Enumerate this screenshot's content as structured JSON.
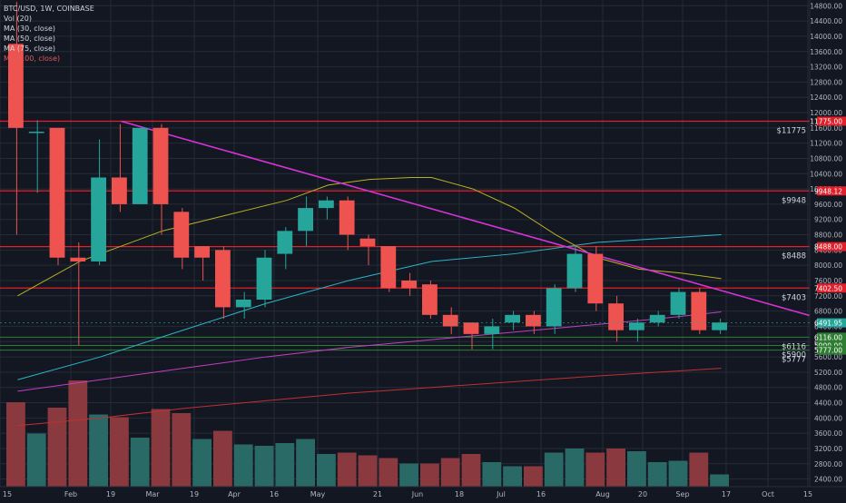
{
  "header": {
    "symbol_line": "BTC/USD, 1W, COINBASE",
    "indicators": [
      "Vol (20)",
      "MA (30, close)",
      "MA (50, close)",
      "MA (75, close)",
      "MA (100, close)"
    ]
  },
  "colors": {
    "background": "#131722",
    "grid": "#262b3a",
    "up": "#26a69a",
    "down": "#ef5350",
    "vol_up": "#2a6a66",
    "vol_down": "#8a3a3f",
    "resistance": "#e0202a",
    "support": "#2e7d32",
    "trendline": "#d633d6",
    "ma30": "#b8b024",
    "ma50": "#2bb6c8",
    "ma75": "#c040c0",
    "ma100": "#c03030"
  },
  "chart_data": {
    "type": "candlestick",
    "title": "BTC/USD, 1W, COINBASE",
    "y_axis_ticks": [
      2400,
      2800,
      3200,
      3600,
      4000,
      4400,
      4800,
      5200,
      5600,
      6000,
      6400,
      6800,
      7200,
      7600,
      8000,
      8400,
      8800,
      9200,
      9600,
      10000,
      10400,
      10800,
      11200,
      11600,
      12000,
      12400,
      12800,
      13200,
      13600,
      14000,
      14400,
      14800
    ],
    "ylim": [
      2200,
      14950
    ],
    "x_axis_labels": [
      "15",
      "Feb",
      "19",
      "Mar",
      "19",
      "Apr",
      "16",
      "May",
      "21",
      "Jun",
      "18",
      "Jul",
      "16",
      "Aug",
      "20",
      "Sep",
      "17",
      "Oct",
      "15"
    ],
    "candles": [
      {
        "o": 13800,
        "h": 14900,
        "l": 8800,
        "c": 11600
      },
      {
        "o": 11500,
        "h": 11800,
        "l": 9900,
        "c": 11500
      },
      {
        "o": 11600,
        "h": 11600,
        "l": 8000,
        "c": 8200
      },
      {
        "o": 8200,
        "h": 8600,
        "l": 5900,
        "c": 8100
      },
      {
        "o": 8100,
        "h": 11300,
        "l": 8000,
        "c": 10300
      },
      {
        "o": 10300,
        "h": 11700,
        "l": 9400,
        "c": 9600
      },
      {
        "o": 9600,
        "h": 11600,
        "l": 9600,
        "c": 11600
      },
      {
        "o": 11600,
        "h": 11700,
        "l": 8800,
        "c": 9600
      },
      {
        "o": 9400,
        "h": 9500,
        "l": 7900,
        "c": 8200
      },
      {
        "o": 8500,
        "h": 8500,
        "l": 7600,
        "c": 8200
      },
      {
        "o": 8400,
        "h": 8500,
        "l": 6600,
        "c": 6900
      },
      {
        "o": 6900,
        "h": 7300,
        "l": 6600,
        "c": 7100
      },
      {
        "o": 7100,
        "h": 8400,
        "l": 6900,
        "c": 8200
      },
      {
        "o": 8300,
        "h": 9000,
        "l": 7900,
        "c": 8900
      },
      {
        "o": 8900,
        "h": 9800,
        "l": 8500,
        "c": 9500
      },
      {
        "o": 9500,
        "h": 9800,
        "l": 9200,
        "c": 9700
      },
      {
        "o": 9700,
        "h": 9800,
        "l": 8400,
        "c": 8800
      },
      {
        "o": 8700,
        "h": 8800,
        "l": 8000,
        "c": 8500
      },
      {
        "o": 8500,
        "h": 8500,
        "l": 7300,
        "c": 7400
      },
      {
        "o": 7600,
        "h": 7800,
        "l": 7200,
        "c": 7400
      },
      {
        "o": 7500,
        "h": 7600,
        "l": 6600,
        "c": 6700
      },
      {
        "o": 6700,
        "h": 6900,
        "l": 6200,
        "c": 6400
      },
      {
        "o": 6500,
        "h": 6500,
        "l": 5800,
        "c": 6200
      },
      {
        "o": 6200,
        "h": 6600,
        "l": 5800,
        "c": 6400
      },
      {
        "o": 6500,
        "h": 6800,
        "l": 6300,
        "c": 6700
      },
      {
        "o": 6700,
        "h": 6800,
        "l": 6200,
        "c": 6400
      },
      {
        "o": 6400,
        "h": 7500,
        "l": 6200,
        "c": 7400
      },
      {
        "o": 7400,
        "h": 8500,
        "l": 7300,
        "c": 8300
      },
      {
        "o": 8300,
        "h": 8500,
        "l": 6800,
        "c": 7000
      },
      {
        "o": 7000,
        "h": 7200,
        "l": 6000,
        "c": 6300
      },
      {
        "o": 6300,
        "h": 6600,
        "l": 6000,
        "c": 6500
      },
      {
        "o": 6500,
        "h": 6800,
        "l": 6400,
        "c": 6700
      },
      {
        "o": 6700,
        "h": 7400,
        "l": 6600,
        "c": 7300
      },
      {
        "o": 7300,
        "h": 7400,
        "l": 6200,
        "c": 6300
      },
      {
        "o": 6300,
        "h": 6600,
        "l": 6200,
        "c": 6500
      }
    ],
    "volume": [
      {
        "v": 0.62,
        "up": false
      },
      {
        "v": 0.39,
        "up": true
      },
      {
        "v": 0.58,
        "up": false
      },
      {
        "v": 0.78,
        "up": false
      },
      {
        "v": 0.53,
        "up": true
      },
      {
        "v": 0.51,
        "up": false
      },
      {
        "v": 0.36,
        "up": true
      },
      {
        "v": 0.57,
        "up": false
      },
      {
        "v": 0.54,
        "up": false
      },
      {
        "v": 0.35,
        "up": true
      },
      {
        "v": 0.41,
        "up": false
      },
      {
        "v": 0.31,
        "up": true
      },
      {
        "v": 0.3,
        "up": true
      },
      {
        "v": 0.32,
        "up": true
      },
      {
        "v": 0.35,
        "up": true
      },
      {
        "v": 0.24,
        "up": true
      },
      {
        "v": 0.25,
        "up": false
      },
      {
        "v": 0.23,
        "up": false
      },
      {
        "v": 0.21,
        "up": false
      },
      {
        "v": 0.17,
        "up": true
      },
      {
        "v": 0.17,
        "up": false
      },
      {
        "v": 0.21,
        "up": false
      },
      {
        "v": 0.24,
        "up": false
      },
      {
        "v": 0.18,
        "up": true
      },
      {
        "v": 0.15,
        "up": true
      },
      {
        "v": 0.15,
        "up": false
      },
      {
        "v": 0.25,
        "up": true
      },
      {
        "v": 0.28,
        "up": true
      },
      {
        "v": 0.25,
        "up": false
      },
      {
        "v": 0.28,
        "up": false
      },
      {
        "v": 0.26,
        "up": true
      },
      {
        "v": 0.18,
        "up": true
      },
      {
        "v": 0.19,
        "up": true
      },
      {
        "v": 0.25,
        "up": false
      },
      {
        "v": 0.09,
        "up": true
      }
    ],
    "moving_averages": [
      {
        "name": "MA (30, close)",
        "color": "#b8b024",
        "points": [
          [
            0,
            7200
          ],
          [
            3,
            8100
          ],
          [
            7,
            8900
          ],
          [
            10,
            9300
          ],
          [
            13,
            9700
          ],
          [
            15,
            10100
          ],
          [
            17,
            10250
          ],
          [
            19,
            10300
          ],
          [
            20,
            10300
          ],
          [
            22,
            10000
          ],
          [
            24,
            9500
          ],
          [
            26,
            8800
          ],
          [
            28,
            8200
          ],
          [
            30,
            7900
          ],
          [
            32,
            7800
          ],
          [
            34,
            7650
          ]
        ]
      },
      {
        "name": "MA (50, close)",
        "color": "#2bb6c8",
        "points": [
          [
            0,
            5000
          ],
          [
            4,
            5600
          ],
          [
            8,
            6300
          ],
          [
            12,
            7000
          ],
          [
            16,
            7600
          ],
          [
            20,
            8100
          ],
          [
            24,
            8300
          ],
          [
            28,
            8600
          ],
          [
            31,
            8700
          ],
          [
            34,
            8800
          ]
        ]
      },
      {
        "name": "MA (75, close)",
        "color": "#c040c0",
        "points": [
          [
            0,
            4700
          ],
          [
            4,
            5000
          ],
          [
            8,
            5300
          ],
          [
            12,
            5600
          ],
          [
            16,
            5850
          ],
          [
            20,
            6050
          ],
          [
            24,
            6250
          ],
          [
            28,
            6450
          ],
          [
            31,
            6600
          ],
          [
            34,
            6780
          ]
        ]
      },
      {
        "name": "MA (100, close)",
        "color": "#c03030",
        "points": [
          [
            0,
            3800
          ],
          [
            4,
            4000
          ],
          [
            8,
            4250
          ],
          [
            12,
            4450
          ],
          [
            16,
            4650
          ],
          [
            20,
            4800
          ],
          [
            24,
            4950
          ],
          [
            28,
            5100
          ],
          [
            31,
            5200
          ],
          [
            34,
            5300
          ]
        ]
      }
    ],
    "horizontal_levels": [
      {
        "value": 11775,
        "kind": "resistance",
        "label": "$11775",
        "tag": "11775.00"
      },
      {
        "value": 9948,
        "kind": "resistance",
        "label": "$9948",
        "tag": "9948.12"
      },
      {
        "value": 8488,
        "kind": "resistance",
        "label": "$8488",
        "tag": "8488.00"
      },
      {
        "value": 7403,
        "kind": "resistance",
        "label": "$7403",
        "tag": "7402.50"
      },
      {
        "value": 6116,
        "kind": "support",
        "label": "$6116",
        "tag": "6116.00"
      },
      {
        "value": 5900,
        "kind": "support",
        "label": "$5900",
        "tag": "5900.00"
      },
      {
        "value": 5777,
        "kind": "support",
        "label": "$5777",
        "tag": "5777.00"
      }
    ],
    "trendline": {
      "from": [
        5,
        11775
      ],
      "to": [
        39,
        6650
      ]
    },
    "last_price": {
      "value": 6491.95,
      "tag": "6491.95"
    },
    "grid": true
  }
}
